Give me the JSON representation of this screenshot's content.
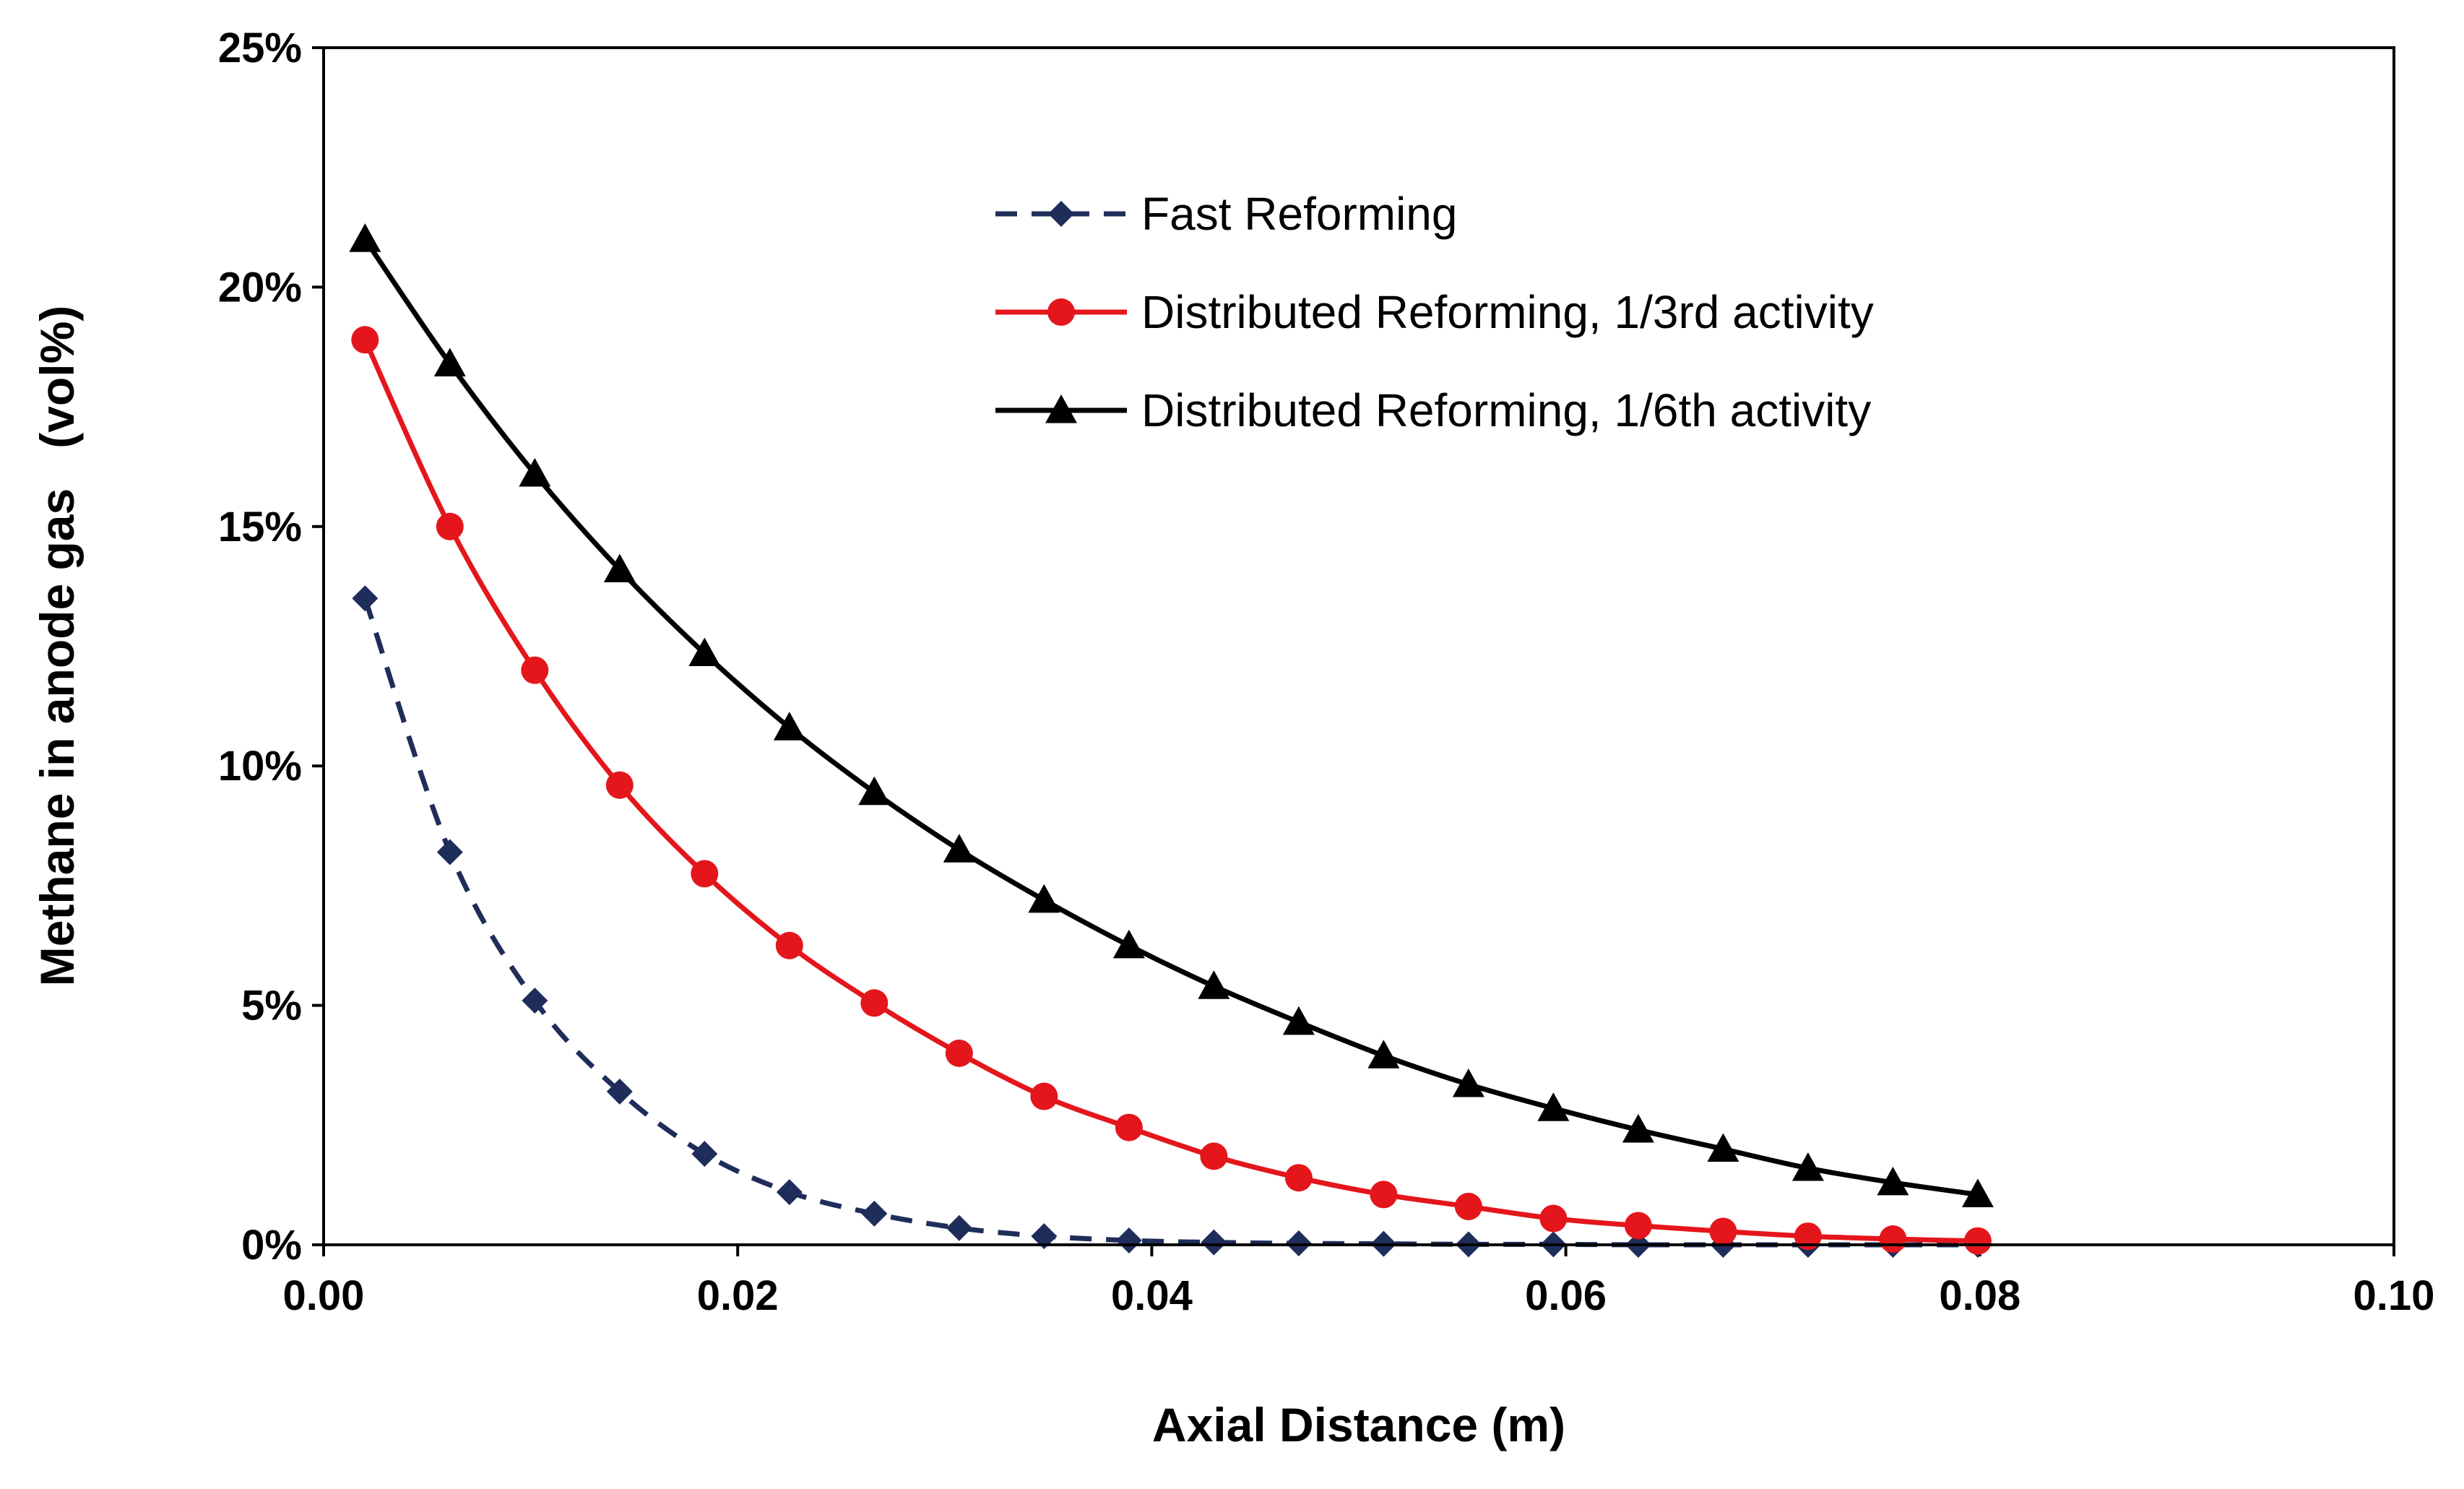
{
  "chart_data": {
    "type": "line",
    "title": "",
    "xlabel": "Axial Distance (m)",
    "ylabel": "Methane in anode gas   (vol%)",
    "xlim": [
      0,
      0.1
    ],
    "ylim": [
      0,
      25
    ],
    "x_ticks": [
      0.0,
      0.02,
      0.04,
      0.06,
      0.08,
      0.1
    ],
    "x_tick_labels": [
      "0.00",
      "0.02",
      "0.04",
      "0.06",
      "0.08",
      "0.10"
    ],
    "y_ticks": [
      0,
      5,
      10,
      15,
      20,
      25
    ],
    "y_tick_labels": [
      "0%",
      "5%",
      "10%",
      "15%",
      "20%",
      "25%"
    ],
    "grid": false,
    "legend_position": "top-right",
    "x": [
      0.002,
      0.0061,
      0.0102,
      0.0143,
      0.0184,
      0.0225,
      0.0266,
      0.0307,
      0.0348,
      0.0389,
      0.043,
      0.0471,
      0.0512,
      0.0553,
      0.0594,
      0.0635,
      0.0676,
      0.0717,
      0.0758,
      0.0799
    ],
    "series": [
      {
        "name": "Fast Reforming",
        "color": "#1f2d5a",
        "line_style": "dashed",
        "marker": "diamond",
        "values": [
          13.5,
          8.2,
          5.1,
          3.2,
          1.9,
          1.1,
          0.65,
          0.35,
          0.18,
          0.09,
          0.05,
          0.03,
          0.02,
          0.01,
          0.01,
          0.0,
          0.0,
          0.0,
          0.0,
          0.0
        ]
      },
      {
        "name": "Distributed Reforming, 1/3rd activity",
        "color": "#e4161c",
        "line_style": "solid",
        "marker": "circle",
        "values": [
          18.9,
          15.0,
          12.0,
          9.6,
          7.75,
          6.25,
          5.05,
          4.0,
          3.1,
          2.45,
          1.85,
          1.4,
          1.05,
          0.8,
          0.55,
          0.4,
          0.28,
          0.18,
          0.12,
          0.08
        ]
      },
      {
        "name": "Distributed Reforming, 1/6th activity",
        "color": "#000000",
        "line_style": "solid",
        "marker": "triangle",
        "values": [
          21.0,
          18.4,
          16.1,
          14.1,
          12.35,
          10.8,
          9.45,
          8.25,
          7.2,
          6.25,
          5.4,
          4.65,
          3.95,
          3.35,
          2.85,
          2.4,
          2.0,
          1.6,
          1.3,
          1.05
        ]
      }
    ]
  }
}
